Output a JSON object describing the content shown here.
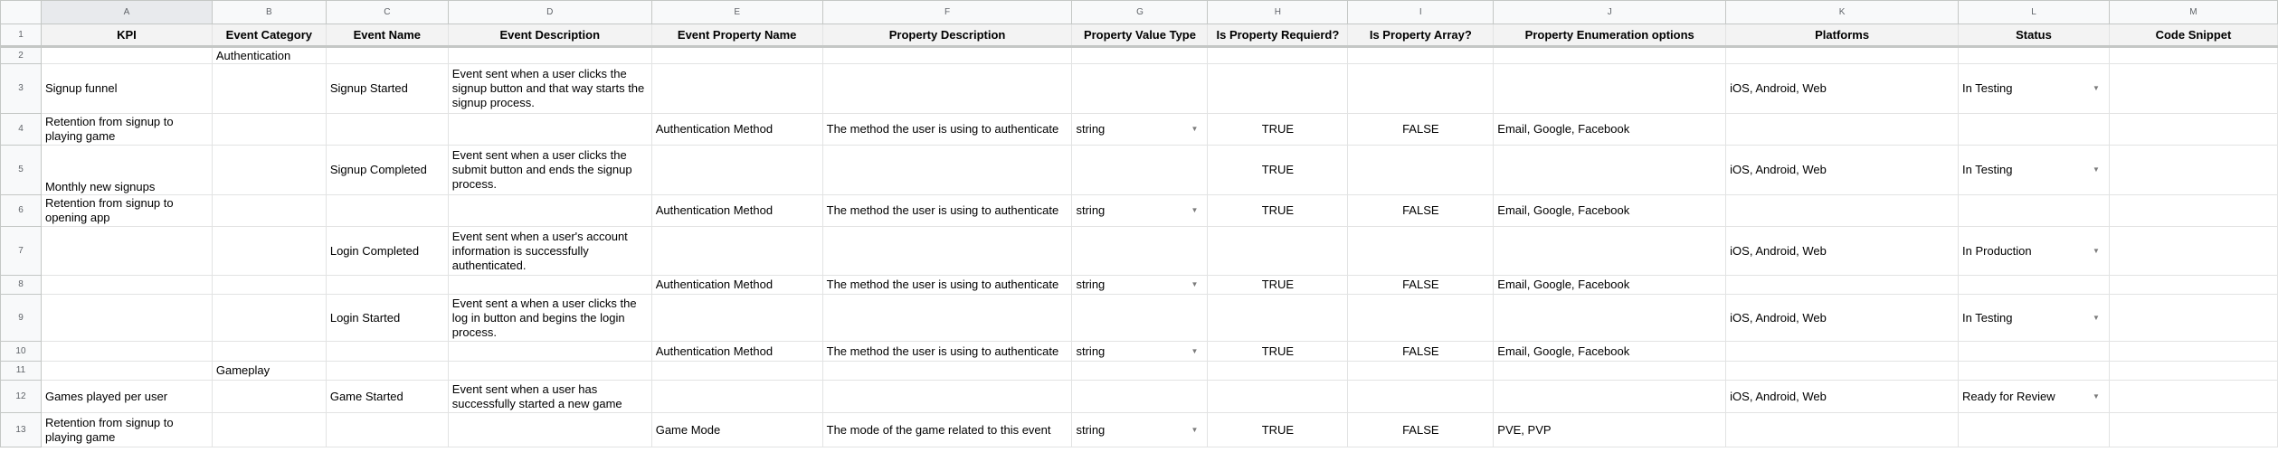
{
  "column_letters": [
    "A",
    "B",
    "C",
    "D",
    "E",
    "F",
    "G",
    "H",
    "I",
    "J",
    "K",
    "L",
    "M"
  ],
  "headers": [
    "KPI",
    "Event Category",
    "Event Name",
    "Event Description",
    "Event Property Name",
    "Property Description",
    "Property Value Type",
    "Is Property Requierd?",
    "Is Property Array?",
    "Property Enumeration options",
    "Platforms",
    "Status",
    "Code Snippet"
  ],
  "dropdown_icon": "triangle-down",
  "rows": [
    {
      "num": "2",
      "cells": [
        "",
        "Authentication",
        "",
        "",
        "",
        "",
        "",
        "",
        "",
        "",
        "",
        "",
        ""
      ]
    },
    {
      "num": "3",
      "cells": [
        "Signup funnel",
        "",
        "Signup Started",
        "Event sent when a user clicks the signup button and that way starts the signup process.",
        "",
        "",
        "",
        "",
        "",
        "",
        "iOS, Android, Web",
        "In Testing",
        ""
      ]
    },
    {
      "num": "4",
      "cells": [
        "Retention from signup to playing game",
        "",
        "",
        "",
        "Authentication Method",
        "The method the user is using to authenticate",
        "string",
        "TRUE",
        "FALSE",
        "Email, Google, Facebook",
        "",
        "",
        ""
      ]
    },
    {
      "num": "5",
      "cells": [
        "Monthly new signups",
        "",
        "Signup Completed",
        "Event sent when a user clicks the submit button and ends the signup process.",
        "",
        "",
        "",
        "TRUE",
        "",
        "",
        "iOS, Android, Web",
        "In Testing",
        ""
      ]
    },
    {
      "num": "6",
      "cells": [
        "Retention from signup to opening app",
        "",
        "",
        "",
        "Authentication Method",
        "The method the user is using to authenticate",
        "string",
        "TRUE",
        "FALSE",
        "Email, Google, Facebook",
        "",
        "",
        ""
      ]
    },
    {
      "num": "7",
      "cells": [
        "",
        "",
        "Login Completed",
        "Event sent when a user's account information is successfully authenticated.",
        "",
        "",
        "",
        "",
        "",
        "",
        "iOS, Android, Web",
        "In Production",
        ""
      ]
    },
    {
      "num": "8",
      "cells": [
        "",
        "",
        "",
        "",
        "Authentication Method",
        "The method the user is using to authenticate",
        "string",
        "TRUE",
        "FALSE",
        "Email, Google, Facebook",
        "",
        "",
        ""
      ]
    },
    {
      "num": "9",
      "cells": [
        "",
        "",
        "Login Started",
        "Event sent a when a user clicks the log in button and begins the login process.",
        "",
        "",
        "",
        "",
        "",
        "",
        "iOS, Android, Web",
        "In Testing",
        ""
      ]
    },
    {
      "num": "10",
      "cells": [
        "",
        "",
        "",
        "",
        "Authentication Method",
        "The method the user is using to authenticate",
        "string",
        "TRUE",
        "FALSE",
        "Email, Google, Facebook",
        "",
        "",
        ""
      ]
    },
    {
      "num": "11",
      "cells": [
        "",
        "Gameplay",
        "",
        "",
        "",
        "",
        "",
        "",
        "",
        "",
        "",
        "",
        ""
      ]
    },
    {
      "num": "12",
      "cells": [
        "Games played per user",
        "",
        "Game Started",
        "Event sent when a user has successfully started a new game",
        "",
        "",
        "",
        "",
        "",
        "",
        "iOS, Android, Web",
        "Ready for Review",
        ""
      ]
    },
    {
      "num": "13",
      "cells": [
        "Retention from signup to playing game",
        "",
        "",
        "",
        "Game Mode",
        "The mode of the game related to this event",
        "string",
        "TRUE",
        "FALSE",
        "PVE, PVP",
        "",
        "",
        ""
      ]
    }
  ],
  "header_row_num": "1"
}
